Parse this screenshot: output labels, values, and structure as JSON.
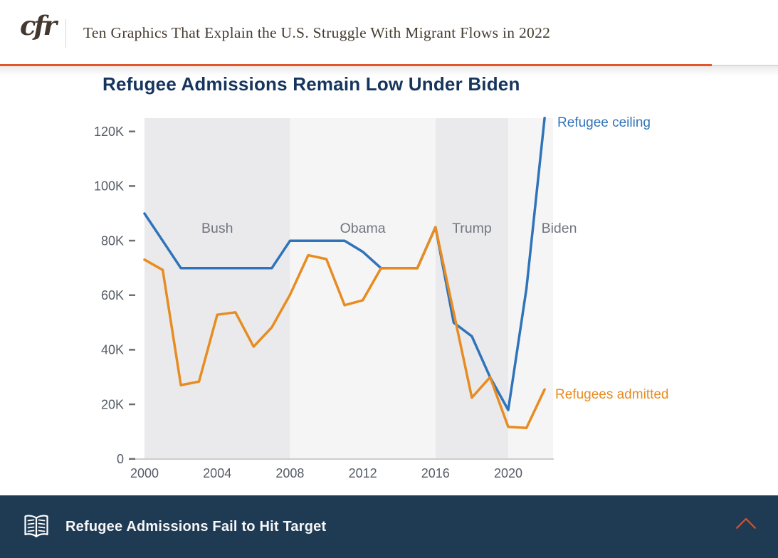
{
  "theme": {
    "accent_orange": "#e2562b",
    "navy": "#16355e",
    "footer_bg": "#1f3a53",
    "logo_brown": "#44372e",
    "title_brown": "#453b2f"
  },
  "header": {
    "logo_text": "cfr",
    "article_title": "Ten Graphics That Explain the U.S. Struggle With Migrant Flows in 2022"
  },
  "section": {
    "chart_title": "Refugee Admissions Remain Low Under Biden"
  },
  "chart_data": {
    "type": "line",
    "title": "Refugee Admissions Remain Low Under Biden",
    "x": [
      2000,
      2001,
      2002,
      2003,
      2004,
      2005,
      2006,
      2007,
      2008,
      2009,
      2010,
      2011,
      2012,
      2013,
      2014,
      2015,
      2016,
      2017,
      2018,
      2019,
      2020,
      2021,
      2022
    ],
    "series": [
      {
        "name": "Refugee ceiling",
        "color": "#2f73b9",
        "values": [
          90,
          80,
          70,
          70,
          70,
          70,
          70,
          70,
          80,
          80,
          80,
          80,
          76,
          70,
          70,
          70,
          85,
          50,
          45,
          30,
          18,
          62.5,
          125
        ]
      },
      {
        "name": "Refugees admitted",
        "color": "#e78c21",
        "values": [
          73.1,
          69.3,
          27.1,
          28.4,
          52.9,
          53.8,
          41.2,
          48.3,
          60.2,
          74.7,
          73.3,
          56.4,
          58.2,
          69.9,
          70,
          69.9,
          85,
          53.7,
          22.5,
          30,
          11.8,
          11.4,
          25.5
        ]
      }
    ],
    "value_unit": "K",
    "ylim": [
      0,
      125
    ],
    "xlim": [
      2000,
      2022.5
    ],
    "grid": false,
    "legend_position": "line-end-labels",
    "yticks": [
      {
        "label": "0",
        "value": 0
      },
      {
        "label": "20K",
        "value": 20
      },
      {
        "label": "40K",
        "value": 40
      },
      {
        "label": "60K",
        "value": 60
      },
      {
        "label": "80K",
        "value": 80
      },
      {
        "label": "100K",
        "value": 100
      },
      {
        "label": "120K",
        "value": 120
      }
    ],
    "xticks": [
      "2000",
      "2004",
      "2008",
      "2012",
      "2016",
      "2020"
    ],
    "eras": [
      {
        "label": "Bush",
        "start": 2000,
        "end": 2008,
        "shade": "dark",
        "label_year": 2004
      },
      {
        "label": "Obama",
        "start": 2008,
        "end": 2016,
        "shade": "light",
        "label_year": 2012
      },
      {
        "label": "Trump",
        "start": 2016,
        "end": 2020,
        "shade": "dark",
        "label_year": 2018
      },
      {
        "label": "Biden",
        "start": 2020,
        "end": 2022.47,
        "shade": "light",
        "label_year": 2022.8
      }
    ],
    "band_colors": {
      "dark": "#eaeaec",
      "light": "#f5f5f6"
    },
    "axis_color": "#cdcdcd",
    "tick_color": "#6b7076"
  },
  "footer": {
    "next_section_title": "Refugee Admissions Fail to Hit Target",
    "book_icon": "open-book-icon",
    "scroll_icon": "chevron-up-icon",
    "chevron_color": "#d4532a"
  }
}
